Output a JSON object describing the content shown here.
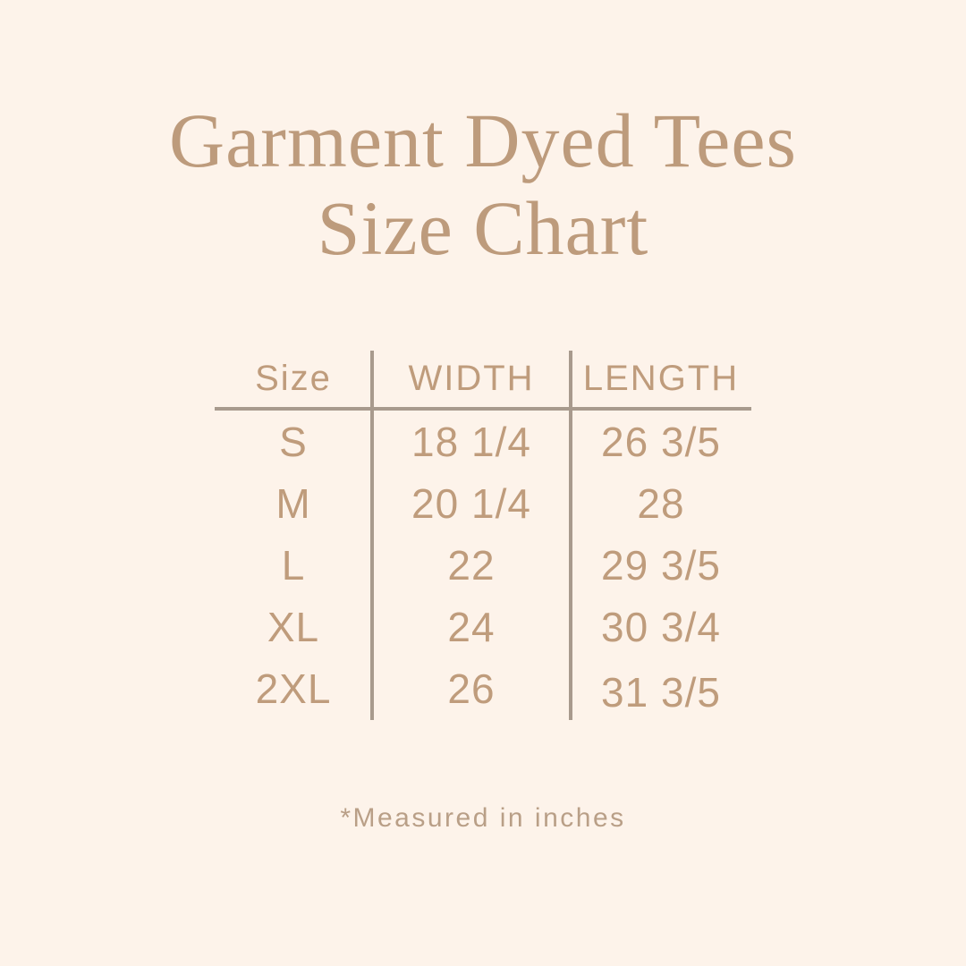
{
  "title": {
    "line1": "Garment Dyed Tees",
    "line2": "Size Chart"
  },
  "chart_data": {
    "type": "table",
    "title": "Garment Dyed Tees Size Chart",
    "columns": [
      "Size",
      "WIDTH",
      "LENGTH"
    ],
    "rows": [
      {
        "size": "S",
        "width": "18 1/4",
        "length": "26 3/5"
      },
      {
        "size": "M",
        "width": "20 1/4",
        "length": "28"
      },
      {
        "size": "L",
        "width": "22",
        "length": "29 3/5"
      },
      {
        "size": "XL",
        "width": "24",
        "length": "30 3/4"
      },
      {
        "size": "2XL",
        "width": "26",
        "length": "31 3/5"
      }
    ],
    "units": "inches",
    "footnote": "*Measured in inches"
  },
  "colors": {
    "background": "#fdf3ea",
    "title_text": "#bd9b7c",
    "table_text": "#bf9c7c",
    "rule_lines": "#a89a8d",
    "footnote_text": "#b99f87"
  }
}
